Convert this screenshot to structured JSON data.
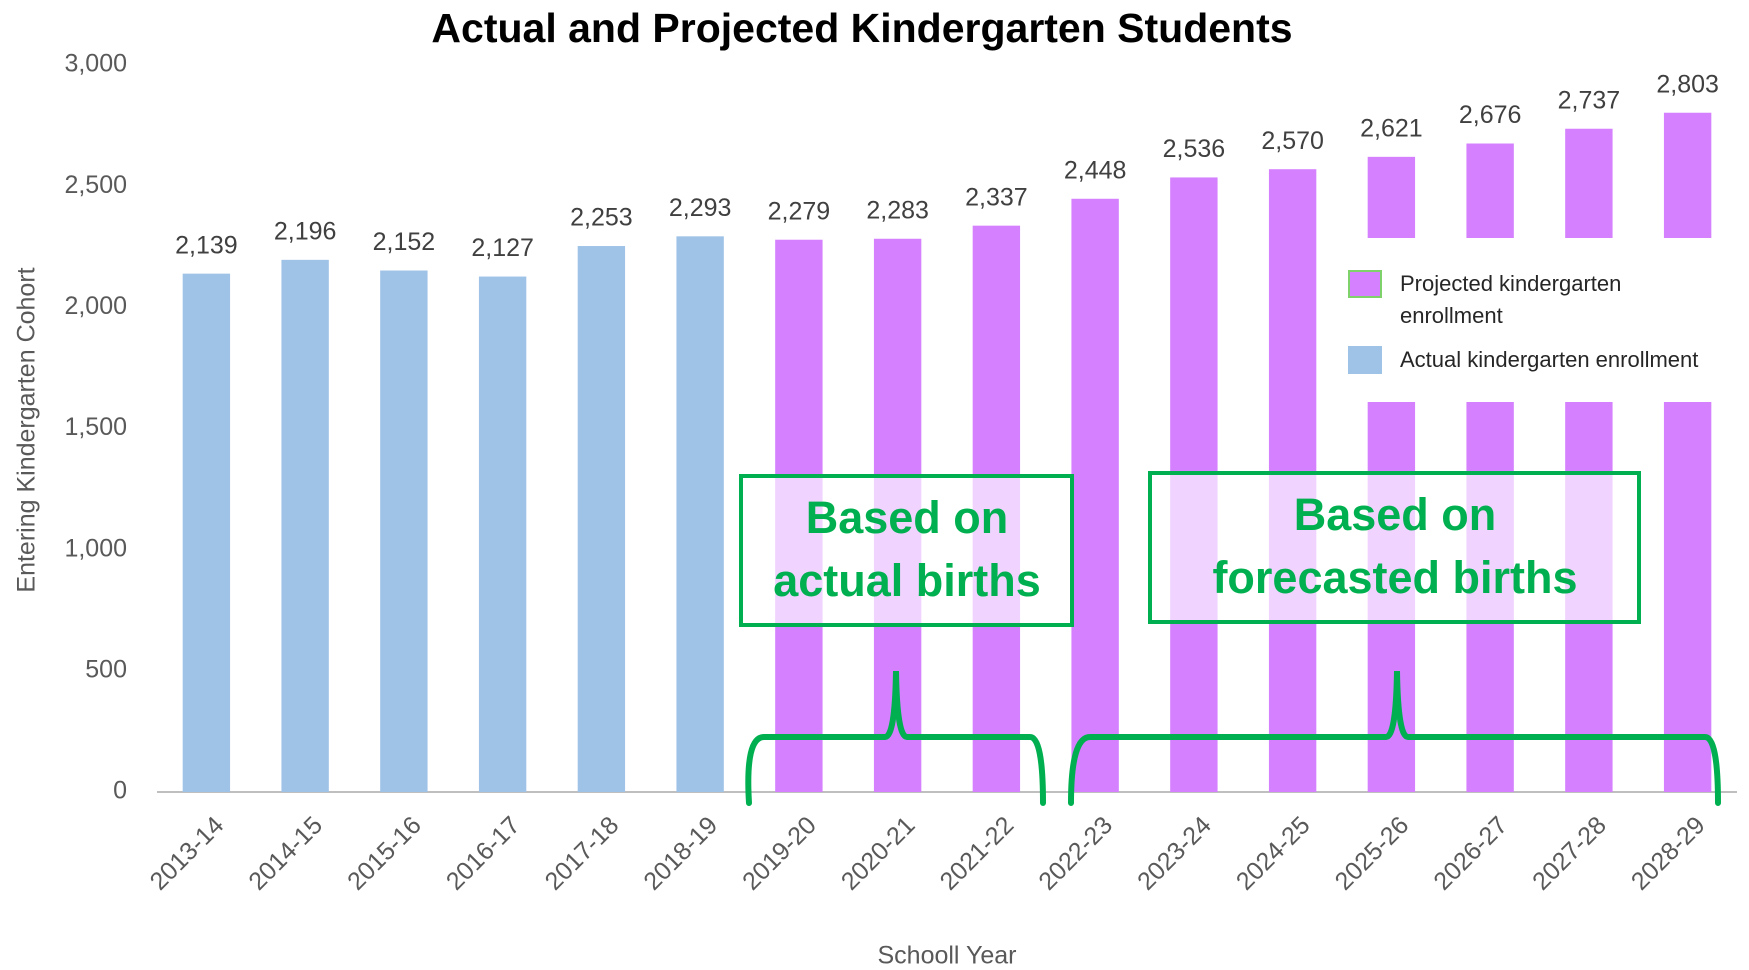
{
  "chart_data": {
    "type": "bar",
    "title": "Actual and Projected Kindergarten Students",
    "x_label": "Schooll Year",
    "y_label": "Entering Kindergarten Cohort",
    "categories": [
      "2013-14",
      "2014-15",
      "2015-16",
      "2016-17",
      "2017-18",
      "2018-19",
      "2019-20",
      "2020-21",
      "2021-22",
      "2022-23",
      "2023-24",
      "2024-25",
      "2025-26",
      "2026-27",
      "2027-28",
      "2028-29"
    ],
    "series": [
      {
        "name": "Actual kindergarten enrollment",
        "color": "#9fc3e7",
        "values": [
          2139,
          2196,
          2152,
          2127,
          2253,
          2293,
          null,
          null,
          null,
          null,
          null,
          null,
          null,
          null,
          null,
          null
        ],
        "value_labels": [
          "2,139",
          "2,196",
          "2,152",
          "2,127",
          "2,253",
          "2,293",
          null,
          null,
          null,
          null,
          null,
          null,
          null,
          null,
          null,
          null
        ]
      },
      {
        "name": "Projected kindergarten enrollment",
        "color": "#d580ff",
        "values": [
          null,
          null,
          null,
          null,
          null,
          null,
          2279,
          2283,
          2337,
          2448,
          2536,
          2570,
          2621,
          2676,
          2737,
          2803
        ],
        "value_labels": [
          null,
          null,
          null,
          null,
          null,
          null,
          "2,279",
          "2,283",
          "2,337",
          "2,448",
          "2,536",
          "2,570",
          "2,621",
          "2,676",
          "2,737",
          "2,803"
        ]
      }
    ],
    "ylim": [
      0,
      3000
    ],
    "yticks": [
      0,
      500,
      {
        "value": 1000,
        "label": "1,000"
      },
      {
        "value": 1500,
        "label": "1,500"
      },
      {
        "value": 2000,
        "label": "2,000"
      },
      {
        "value": 2500,
        "label": "2,500"
      },
      {
        "value": 3000,
        "label": "3,000"
      }
    ],
    "legend": "right",
    "annotations": [
      [
        "Based on",
        "actual births"
      ],
      [
        "Based on",
        "forecasted births"
      ]
    ]
  }
}
